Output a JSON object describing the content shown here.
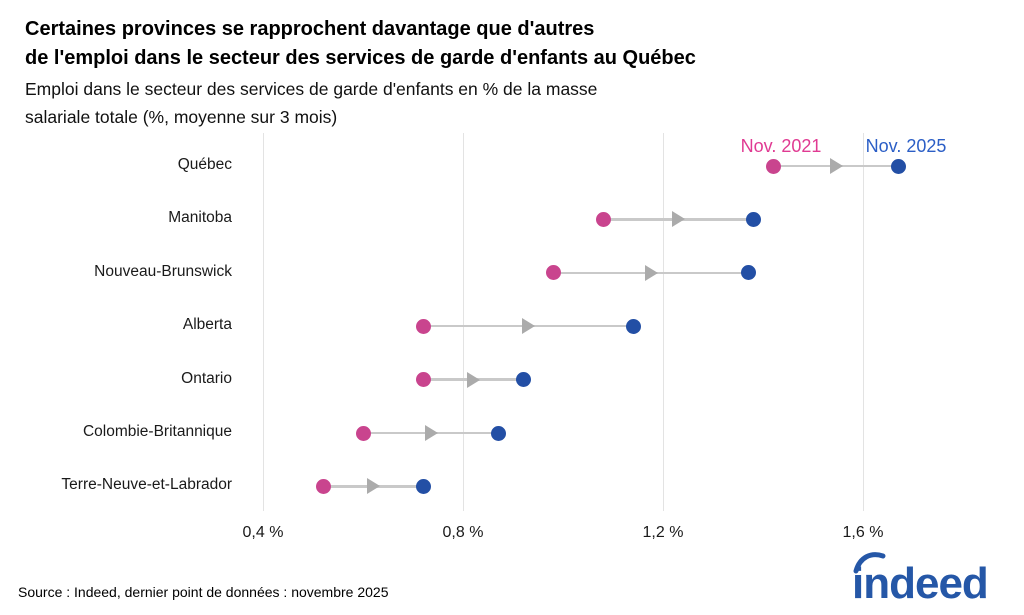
{
  "chart_data": {
    "type": "dumbbell",
    "title_lines": [
      "Certaines provinces se rapprochent davantage que d'autres",
      "de l'emploi dans le secteur des services de garde d'enfants au Québec"
    ],
    "subtitle_lines": [
      "Emploi dans le secteur des services de garde d'enfants en % de la masse",
      "salariale totale (%, moyenne sur 3 mois)"
    ],
    "categories": [
      "Québec",
      "Manitoba",
      "Nouveau-Brunswick",
      "Alberta",
      "Ontario",
      "Colombie-Britannique",
      "Terre-Neuve-et-Labrador"
    ],
    "series": [
      {
        "name": "Nov. 2021",
        "dot_color": "#C9448E",
        "label_color": "#E03A92",
        "values": [
          1.42,
          1.08,
          0.98,
          0.72,
          0.72,
          0.6,
          0.52
        ]
      },
      {
        "name": "Nov. 2025",
        "dot_color": "#234FA5",
        "label_color": "#2B5EC6",
        "values": [
          1.67,
          1.38,
          1.37,
          1.14,
          0.92,
          0.87,
          0.72
        ]
      }
    ],
    "x_ticks": [
      {
        "value": 0.4,
        "label": "0,4 %"
      },
      {
        "value": 0.8,
        "label": "0,8 %"
      },
      {
        "value": 1.2,
        "label": "1,2 %"
      },
      {
        "value": 1.6,
        "label": "1,6 %"
      }
    ],
    "xlim": [
      0.35,
      1.85
    ],
    "unit": "%",
    "grid": true,
    "legend_position": "above-first-row-dots",
    "gridline_color": "#E3E3E3",
    "connector_color": "#C9C9C9",
    "arrow_color": "#ABABAB"
  },
  "footer": {
    "source": "Source : Indeed, dernier point de données : novembre 2025",
    "logo_text": "indeed",
    "logo_color": "#2557A7"
  }
}
